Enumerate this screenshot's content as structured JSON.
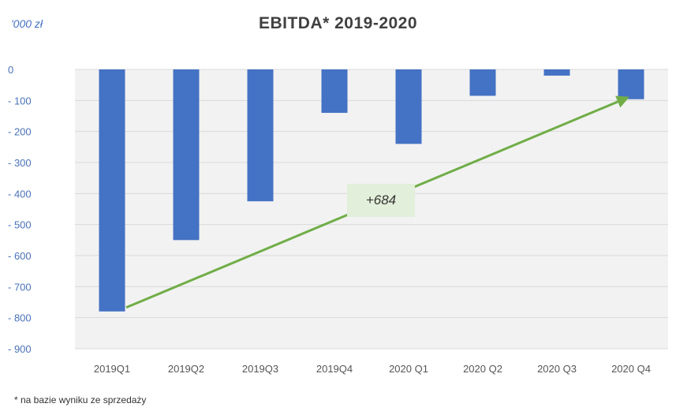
{
  "chart_data": {
    "type": "bar",
    "title": "EBITDA* 2019-2020",
    "unit_label": "'000 zł",
    "categories": [
      "2019Q1",
      "2019Q2",
      "2019Q3",
      "2019Q4",
      "2020 Q1",
      "2020 Q2",
      "2020 Q3",
      "2020 Q4"
    ],
    "values": [
      -780,
      -550,
      -425,
      -140,
      -240,
      -85,
      -20,
      -96
    ],
    "yticks": [
      "0",
      "- 100",
      "- 200",
      "- 300",
      "- 400",
      "- 500",
      "- 600",
      "- 700",
      "- 800",
      "- 900"
    ],
    "ylim": [
      -900,
      0
    ],
    "grid": true,
    "bar_color": "#4472c4",
    "plot_background": "#f2f2f2",
    "annotation": {
      "text": "+684",
      "arrow_color": "#70ad47",
      "box_color": "#e2efda",
      "from_category": "2019Q1",
      "to_category": "2020 Q4"
    },
    "footnote": "* na bazie wyniku ze sprzedaży"
  }
}
